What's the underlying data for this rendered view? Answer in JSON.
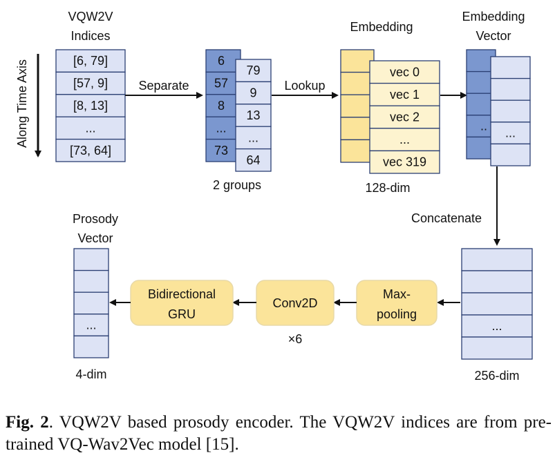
{
  "colors": {
    "light_blue": "#dde3f5",
    "dark_blue": "#7b97cf",
    "yellow": "#fbe49a",
    "light_yellow": "#fdf3cf",
    "box_yellow": "#fbe49a",
    "stroke": "#2b3f73"
  },
  "diagram": {
    "time_axis_label": "Along Time Axis",
    "indices_title_1": "VQW2V",
    "indices_title_2": "Indices",
    "indices": [
      "[6, 79]",
      "[57, 9]",
      "[8, 13]",
      "...",
      "[73, 64]"
    ],
    "separate_label": "Separate",
    "group_a": [
      "6",
      "57",
      "8",
      "...",
      "73"
    ],
    "group_b": [
      "79",
      "9",
      "13",
      "...",
      "64"
    ],
    "groups_label": "2 groups",
    "lookup_label": "Lookup",
    "embedding_title": "Embedding",
    "vecs": [
      "vec 0",
      "vec 1",
      "vec 2",
      "...",
      "vec 319"
    ],
    "embedding_dim": "128-dim",
    "embedding_vector_title_1": "Embedding",
    "embedding_vector_title_2": "Vector",
    "embedding_vector_ellipsis_back": "..",
    "embedding_vector_ellipsis_front": "...",
    "concatenate_label": "Concatenate",
    "concat_ellipsis": "...",
    "concat_dim": "256-dim",
    "maxpool_line1": "Max-",
    "maxpool_line2": "pooling",
    "conv_label": "Conv2D",
    "conv_repeat": "×6",
    "gru_line1": "Bidirectional",
    "gru_line2": "GRU",
    "prosody_title_1": "Prosody",
    "prosody_title_2": "Vector",
    "prosody_ellipsis": "...",
    "prosody_dim": "4-dim"
  },
  "caption": {
    "fig_label": "Fig. 2",
    "text": ". VQW2V based prosody encoder. The VQW2V indices are from pre-trained VQ-Wav2Vec model [15]."
  }
}
